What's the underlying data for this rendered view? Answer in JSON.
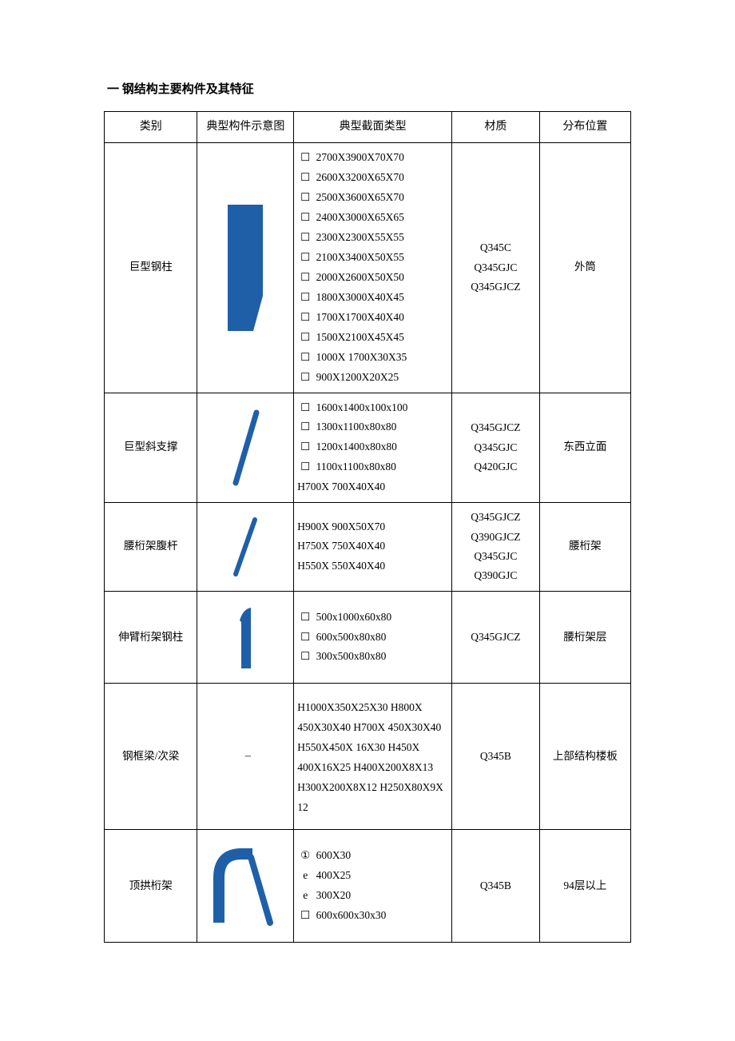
{
  "heading": "一  钢结构主要构件及其特征",
  "columns": [
    "类别",
    "典型构件示意图",
    "典型截面类型",
    "材质",
    "分布位置"
  ],
  "shape_color": "#1f5fa8",
  "rows": [
    {
      "category": "巨型钢柱",
      "shape": "column",
      "sections": [
        {
          "mark": "☐",
          "text": "2700X3900X70X70"
        },
        {
          "mark": "☐",
          "text": "2600X3200X65X70"
        },
        {
          "mark": "☐",
          "text": "2500X3600X65X70"
        },
        {
          "mark": "☐",
          "text": "2400X3000X65X65"
        },
        {
          "mark": "☐",
          "text": "2300X2300X55X55"
        },
        {
          "mark": "☐",
          "text": "2100X3400X50X55"
        },
        {
          "mark": "☐",
          "text": "2000X2600X50X50"
        },
        {
          "mark": "☐",
          "text": "1800X3000X40X45"
        },
        {
          "mark": "☐",
          "text": "1700X1700X40X40"
        },
        {
          "mark": "☐",
          "text": "1500X2100X45X45"
        },
        {
          "mark": "☐",
          "text": "1000X 1700X30X35"
        },
        {
          "mark": "☐",
          "text": "900X1200X20X25"
        }
      ],
      "materials": [
        "Q345C",
        "Q345GJC",
        "Q345GJCZ"
      ],
      "location": "外筒"
    },
    {
      "category": "巨型斜支撑",
      "shape": "slash",
      "sections": [
        {
          "mark": "☐",
          "text": "1600x1400x100x100"
        },
        {
          "mark": "☐",
          "text": "1300x1100x80x80"
        },
        {
          "mark": "☐",
          "text": "1200x1400x80x80"
        },
        {
          "mark": "☐",
          "text": "1100x1100x80x80"
        },
        {
          "mark": "",
          "text": "H700X 700X40X40"
        }
      ],
      "materials": [
        "Q345GJCZ",
        "Q345GJC",
        "Q420GJC"
      ],
      "location": "东西立面"
    },
    {
      "category": "腰桁架腹杆",
      "shape": "slash2",
      "sections": [
        {
          "mark": "",
          "text": "H900X 900X50X70"
        },
        {
          "mark": "",
          "text": "H750X 750X40X40"
        },
        {
          "mark": "",
          "text": "H550X 550X40X40"
        }
      ],
      "materials": [
        "Q345GJCZ",
        "Q390GJCZ",
        "Q345GJC",
        "Q390GJC"
      ],
      "location": "腰桁架"
    },
    {
      "category": "伸臂桁架钢柱",
      "shape": "one",
      "sections": [
        {
          "mark": "☐",
          "text": "500x1000x60x80"
        },
        {
          "mark": "☐",
          "text": "600x500x80x80"
        },
        {
          "mark": "☐",
          "text": "300x500x80x80"
        }
      ],
      "materials": [
        "Q345GJCZ"
      ],
      "location": "腰桁架层"
    },
    {
      "category": "钢框梁/次梁",
      "shape": "dash",
      "wrap": true,
      "sections": [
        {
          "mark": "",
          "text": "H1000X350X25X30 H800X 450X30X40 H700X 450X30X40 H550X450X 16X30 H450X 400X16X25 H400X200X8X13 H300X200X8X12 H250X80X9X 12"
        }
      ],
      "materials": [
        "Q345B"
      ],
      "location": "上部结构楼板"
    },
    {
      "category": "顶拱桁架",
      "shape": "arch",
      "sections": [
        {
          "mark": "①",
          "text": "600X30"
        },
        {
          "mark": "e",
          "text": "400X25"
        },
        {
          "mark": "e",
          "text": "300X20"
        },
        {
          "mark": "☐",
          "text": "600x600x30x30"
        }
      ],
      "materials": [
        "Q345B"
      ],
      "location": "94层以上"
    }
  ]
}
